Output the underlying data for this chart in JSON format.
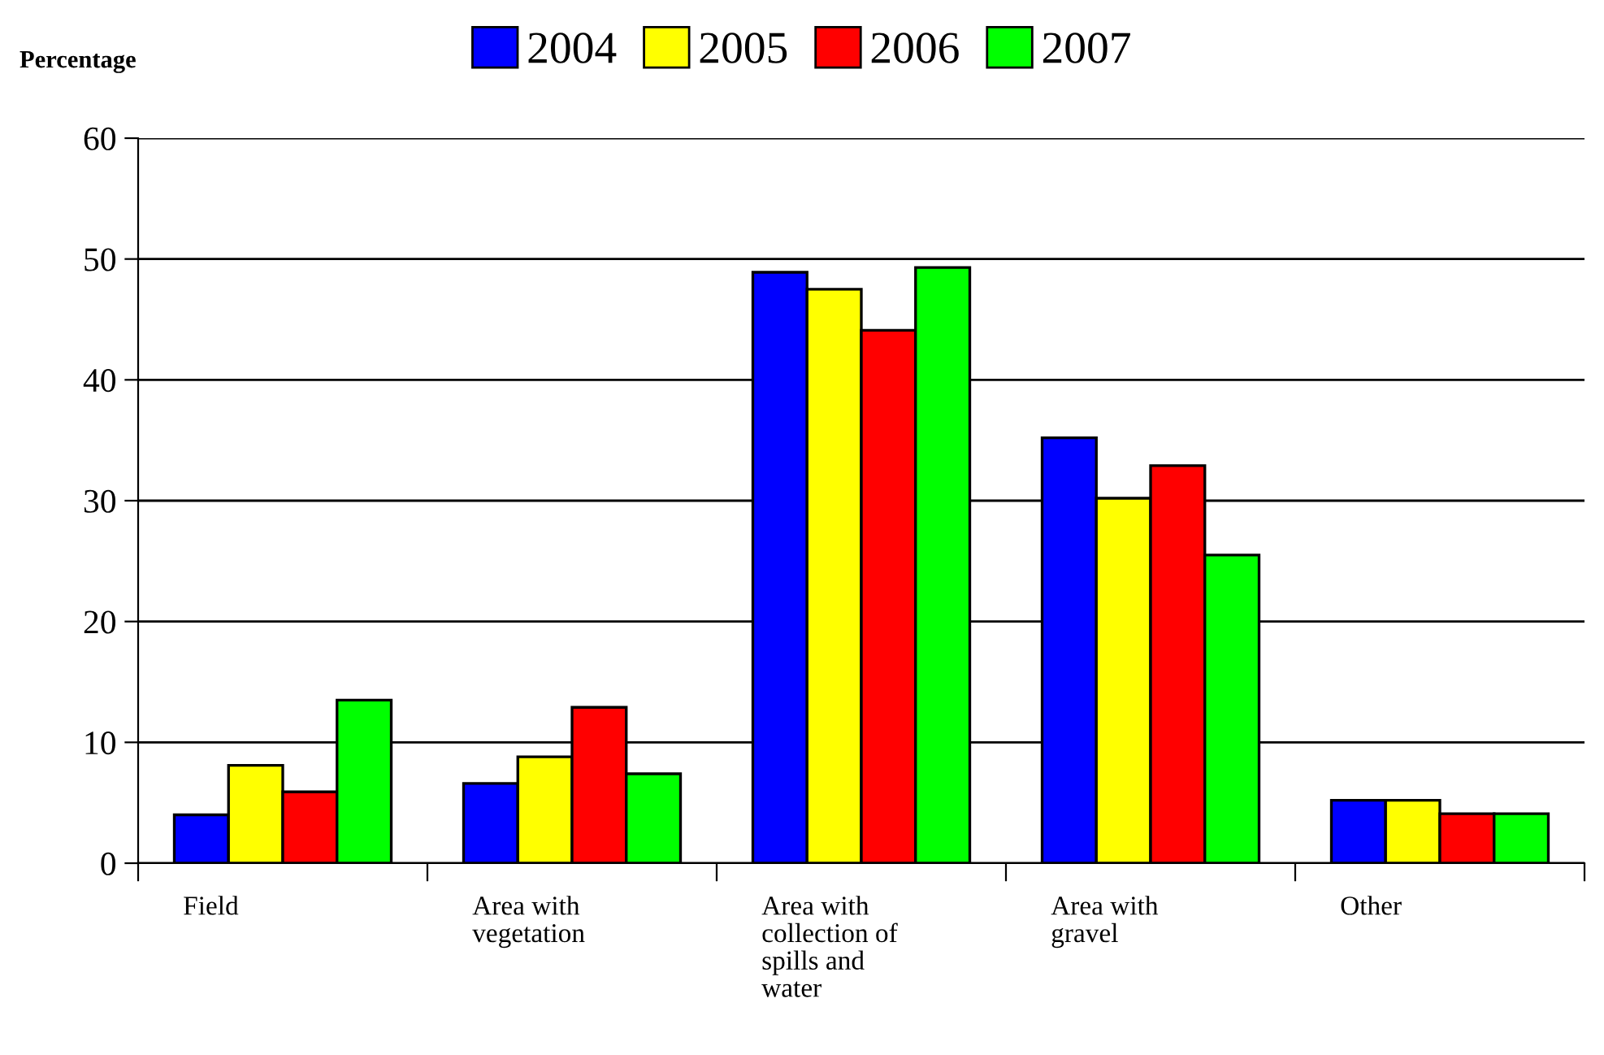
{
  "chart_data": {
    "type": "bar",
    "ylabel": "Percentage",
    "categories": [
      "Field",
      "Area with\nvegetation",
      "Area with\ncollection of\nspills and\nwater",
      "Area with\ngravel",
      "Other"
    ],
    "series": [
      {
        "name": "2004",
        "color": "#0000ff",
        "values": [
          4.0,
          6.6,
          48.9,
          35.2,
          5.2
        ]
      },
      {
        "name": "2005",
        "color": "#ffff00",
        "values": [
          8.1,
          8.8,
          47.5,
          30.2,
          5.2
        ]
      },
      {
        "name": "2006",
        "color": "#ff0000",
        "values": [
          5.9,
          12.9,
          44.1,
          32.9,
          4.1
        ]
      },
      {
        "name": "2007",
        "color": "#00ff00",
        "values": [
          13.5,
          7.4,
          49.3,
          25.5,
          4.1
        ]
      }
    ],
    "ylim": [
      0,
      60
    ],
    "yticks": [
      0,
      10,
      20,
      30,
      40,
      50,
      60
    ],
    "grid": "y",
    "legend": "top"
  }
}
